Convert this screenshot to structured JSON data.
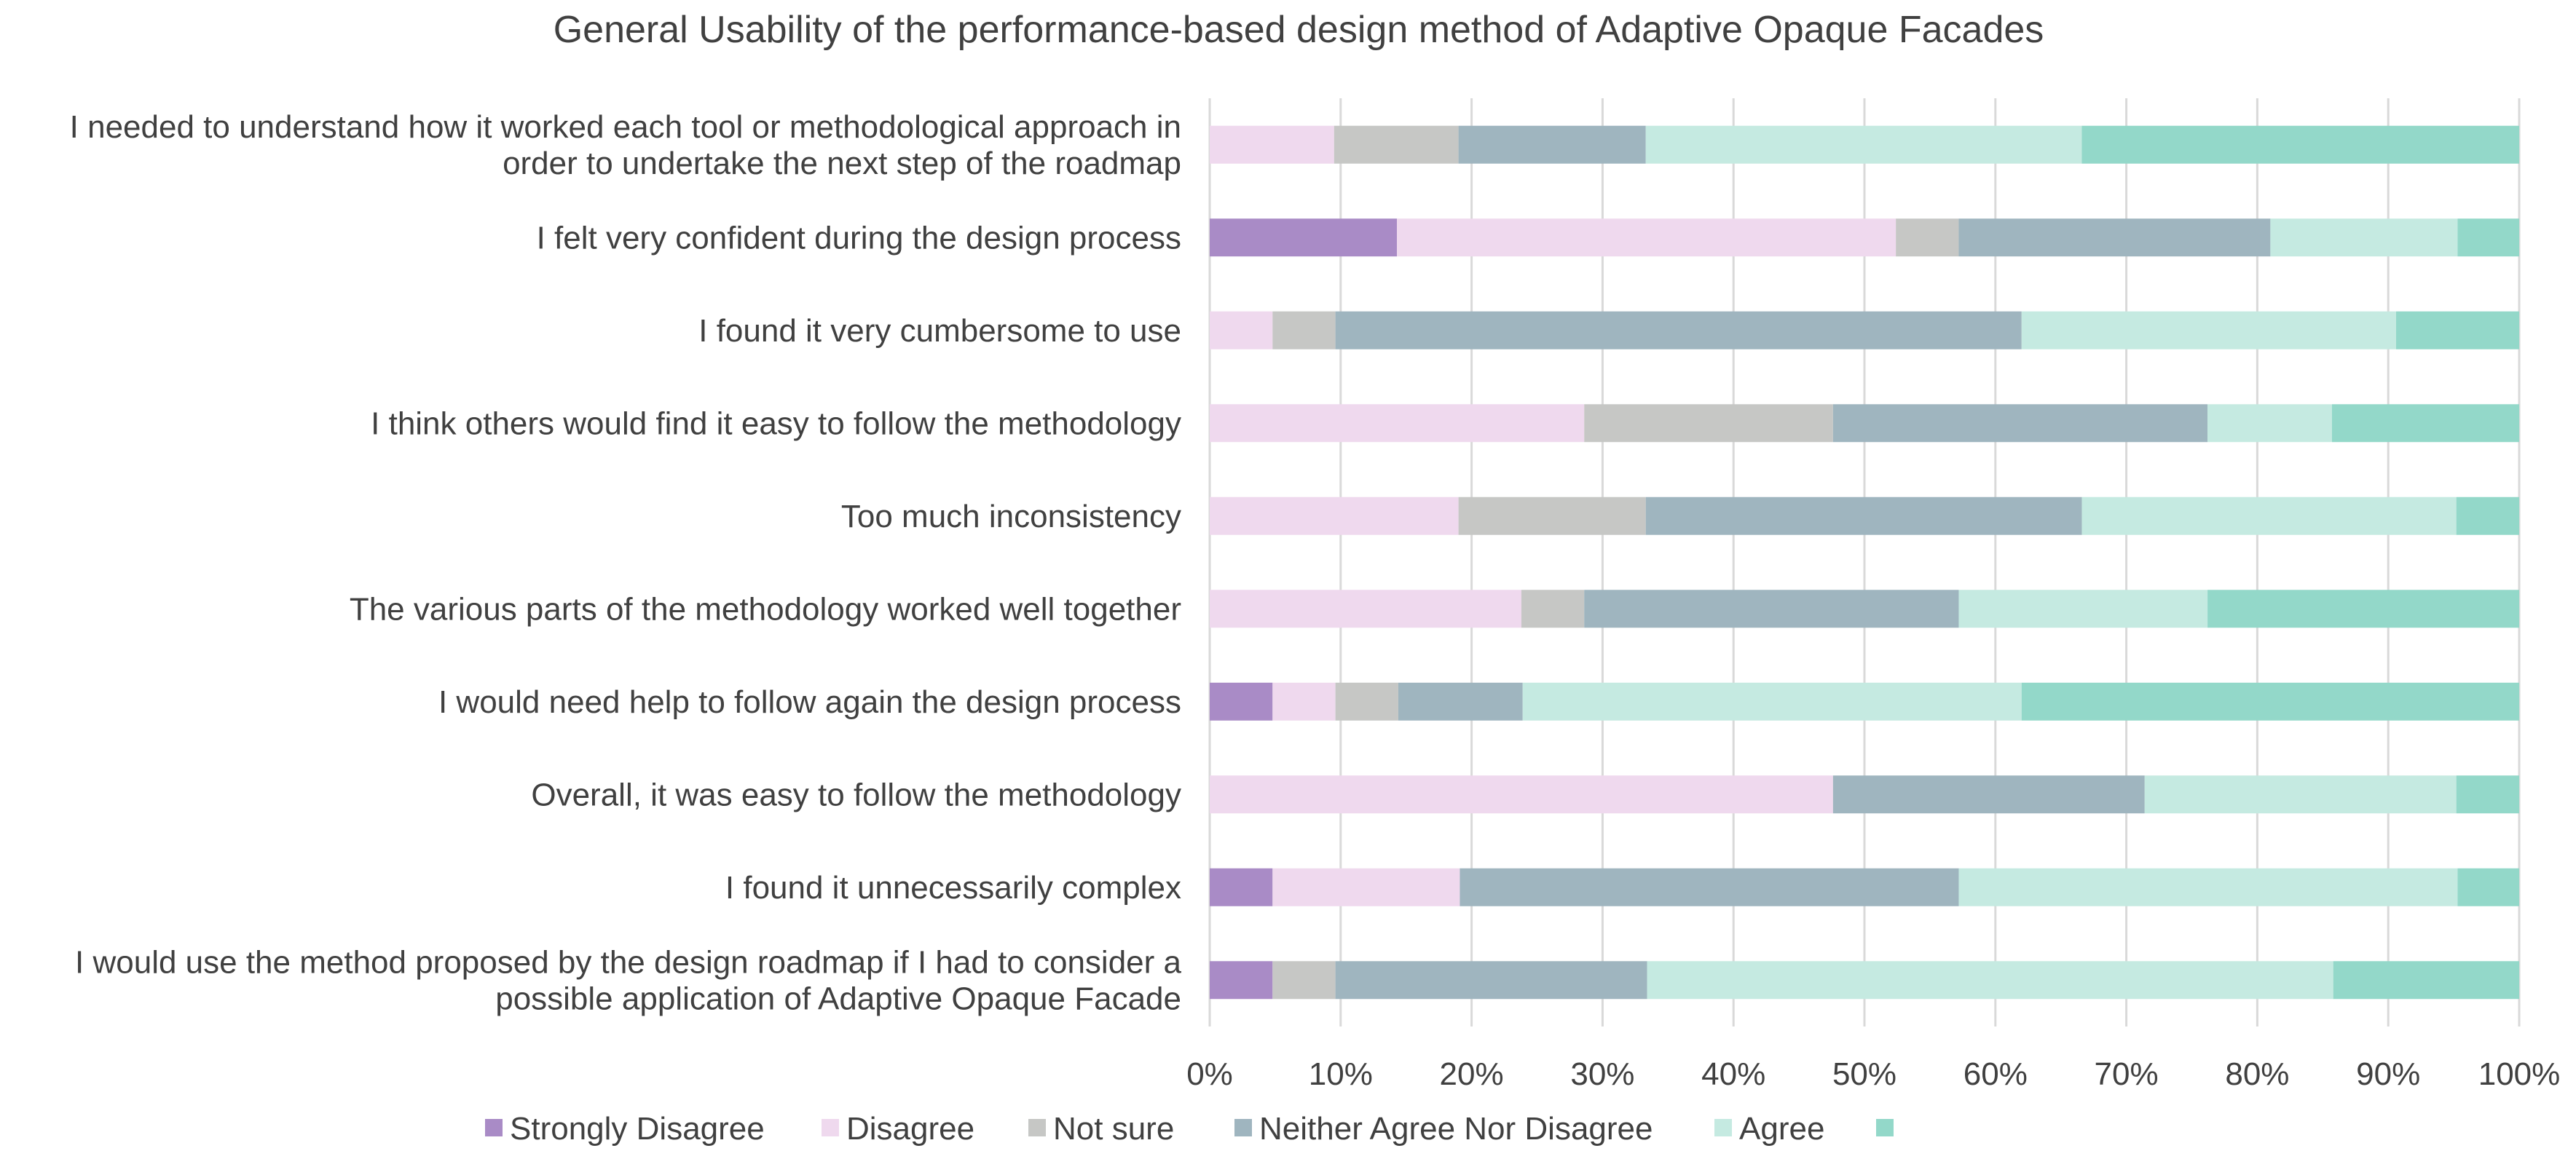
{
  "chart_data": {
    "type": "bar",
    "orientation": "horizontal",
    "stacked": true,
    "stack_mode": "percent",
    "title": "General Usability of the performance-based  design method of Adaptive Opaque Facades",
    "xlabel": "",
    "ylabel": "",
    "xlim": [
      0,
      100
    ],
    "x_ticks": [
      "0%",
      "10%",
      "20%",
      "30%",
      "40%",
      "50%",
      "60%",
      "70%",
      "80%",
      "90%",
      "100%"
    ],
    "grid": true,
    "legend_position": "bottom",
    "categories": [
      {
        "lines": [
          "I needed to understand how it worked each tool or methodological approach in",
          "order to undertake the next step of the roadmap"
        ]
      },
      {
        "lines": [
          "I felt very confident during the design process"
        ]
      },
      {
        "lines": [
          "I found  it very cumbersome to use"
        ]
      },
      {
        "lines": [
          "I think others would find it easy to follow the methodology"
        ]
      },
      {
        "lines": [
          "Too much inconsistency"
        ]
      },
      {
        "lines": [
          "The various parts of the methodology worked well together"
        ]
      },
      {
        "lines": [
          "I would need help to follow again the design process"
        ]
      },
      {
        "lines": [
          "Overall, it was easy to follow the methodology"
        ]
      },
      {
        "lines": [
          "I found it unnecessarily complex"
        ]
      },
      {
        "lines": [
          "I would use the method proposed by the design roadmap if I had to consider a",
          "possible application of Adaptive Opaque Facade"
        ]
      }
    ],
    "series": [
      {
        "name": "Strongly Disagree",
        "color": "#a98bc6",
        "values": [
          0,
          14.3,
          0,
          0,
          0,
          0,
          4.8,
          0,
          4.8,
          4.8
        ]
      },
      {
        "name": "Disagree",
        "color": "#efd9ee",
        "values": [
          9.5,
          38.1,
          4.8,
          28.6,
          19.0,
          23.8,
          4.8,
          47.6,
          14.3,
          0
        ]
      },
      {
        "name": "Not sure",
        "color": "#c6c7c5",
        "values": [
          9.5,
          4.8,
          4.8,
          19.0,
          14.3,
          4.8,
          4.8,
          0,
          0,
          4.8
        ]
      },
      {
        "name": "Neither Agree Nor Disagree",
        "color": "#9fb5bf",
        "values": [
          14.3,
          23.8,
          52.4,
          28.6,
          33.3,
          28.6,
          9.5,
          23.8,
          38.1,
          23.8
        ]
      },
      {
        "name": "Agree",
        "color": "#c5eae1",
        "values": [
          33.3,
          14.3,
          28.6,
          9.5,
          28.6,
          19.0,
          38.1,
          23.8,
          38.1,
          52.4
        ]
      },
      {
        "name": "",
        "color": "#93d8c9",
        "values": [
          33.4,
          4.7,
          9.4,
          14.3,
          4.8,
          23.8,
          38.0,
          4.8,
          4.7,
          14.2
        ]
      }
    ]
  }
}
